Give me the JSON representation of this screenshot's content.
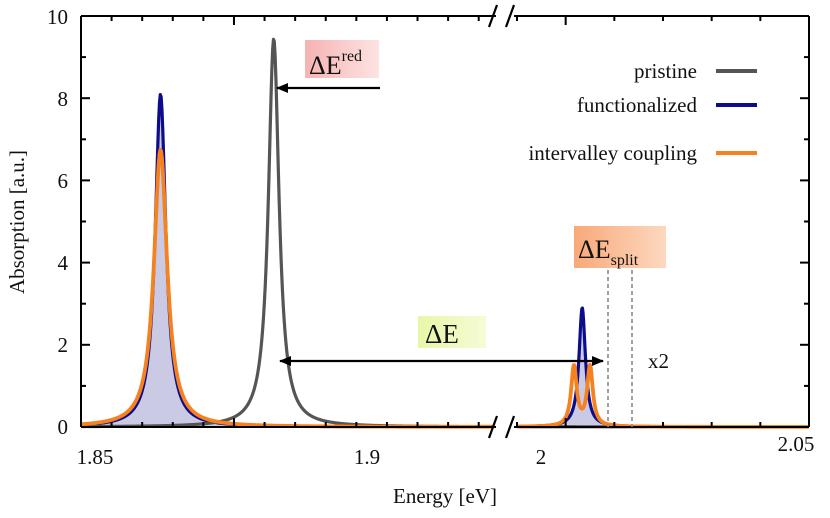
{
  "chart_data": {
    "type": "line",
    "title": "",
    "xlabel": "Energy [eV]",
    "ylabel": "Absorption [a.u.]",
    "ylim": [
      0,
      10
    ],
    "x_ticks": [
      "1.85",
      "1.9",
      "2",
      "2.05"
    ],
    "y_ticks": [
      "0",
      "2",
      "4",
      "6",
      "8",
      "10"
    ],
    "axis_break": true,
    "segments": [
      {
        "name": "left",
        "xlim": [
          1.85,
          1.985
        ]
      },
      {
        "name": "right",
        "xlim": [
          1.99,
          2.05
        ]
      }
    ],
    "grid": false,
    "legend_position": "top-right",
    "series": [
      {
        "name": "pristine",
        "color": "#555555",
        "peaks": [
          {
            "x": 1.913,
            "height": 9.45,
            "width": 0.0021
          }
        ]
      },
      {
        "name": "functionalized",
        "color": "#0d0d8c",
        "fill": "#b8b8dc",
        "peaks": [
          {
            "x": 1.876,
            "height": 8.1,
            "width": 0.0021
          },
          {
            "x": 2.0034,
            "height": 2.9,
            "width": 0.0008
          }
        ]
      },
      {
        "name": "intervalley coupling",
        "color": "#f5821f",
        "peaks": [
          {
            "x": 1.876,
            "height": 6.75,
            "width": 0.0026
          },
          {
            "x": 2.0017,
            "height": 1.45,
            "width": 0.0007
          },
          {
            "x": 2.005,
            "height": 1.45,
            "width": 0.0007
          }
        ]
      }
    ],
    "annotations": {
      "delta_e_red": {
        "main": "ΔE",
        "sup": "red"
      },
      "delta_e": {
        "main": "ΔE"
      },
      "delta_e_split": {
        "main": "ΔE",
        "sub": "split"
      },
      "scale_note": "x2"
    }
  }
}
